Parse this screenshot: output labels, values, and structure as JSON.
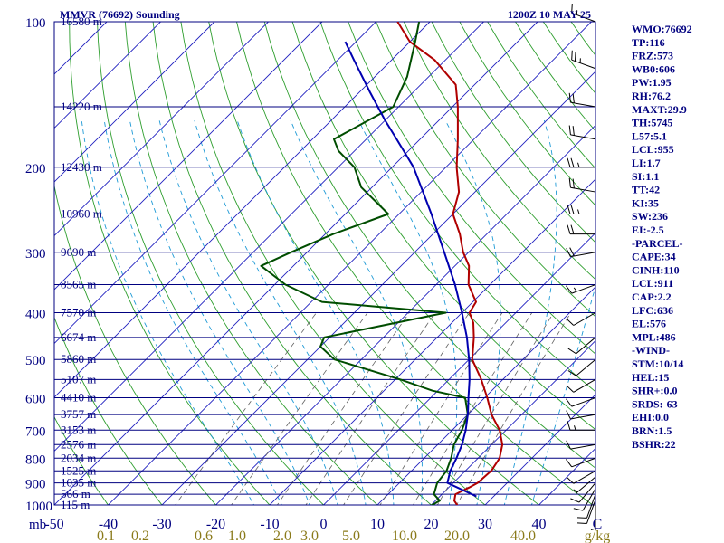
{
  "title_left": "MMVR (76692) Sounding",
  "title_right": "1200Z 10 MAY 25",
  "indices": [
    "WMO:76692",
    "TP:116",
    "FRZ:573",
    "WB0:606",
    "PW:1.95",
    "RH:76.2",
    "MAXT:29.9",
    "TH:5745",
    "L57:5.1",
    "LCL:955",
    "LI:1.7",
    "SI:1.1",
    "TT:42",
    "KI:35",
    "SW:236",
    "EI:-2.5",
    "-PARCEL-",
    "CAPE:34",
    "CINH:110",
    "LCL:911",
    "CAP:2.2",
    "LFC:636",
    "EL:576",
    "MPL:486",
    "-WIND-",
    "STM:10/14",
    "HEL:15",
    "SHR+:0.0",
    "SRDS:-63",
    "EHI:0.0",
    "BRN:1.5",
    "BSHR:22"
  ],
  "chart_data": {
    "type": "line",
    "subtype": "skew-T log-P sounding",
    "y_axis": {
      "label": "mb",
      "scale": "log",
      "ylim": [
        1000,
        100
      ],
      "ticks": [
        100,
        200,
        300,
        400,
        500,
        600,
        700,
        800,
        900,
        1000
      ]
    },
    "x_axis": {
      "unit_label": "C",
      "ticks": [
        -50,
        -40,
        -30,
        -20,
        -10,
        0,
        10,
        20,
        30,
        40
      ]
    },
    "mixing_ratio_axis": {
      "unit_label": "g/kg",
      "ticks": [
        "0.1",
        "0.2",
        "0.6",
        "1.0",
        "2.0",
        "3.0",
        "5.0",
        "10.0",
        "20.0",
        "40.0"
      ]
    },
    "heights": [
      {
        "p": 100,
        "label": "16580 m"
      },
      {
        "p": 150,
        "label": "14220 m"
      },
      {
        "p": 200,
        "label": "12430 m"
      },
      {
        "p": 250,
        "label": "10960 m"
      },
      {
        "p": 300,
        "label": "9690 m"
      },
      {
        "p": 350,
        "label": "8565 m"
      },
      {
        "p": 400,
        "label": "7570 m"
      },
      {
        "p": 450,
        "label": "6674 m"
      },
      {
        "p": 500,
        "label": "5860 m"
      },
      {
        "p": 550,
        "label": "5107 m"
      },
      {
        "p": 600,
        "label": "4410 m"
      },
      {
        "p": 650,
        "label": "3757 m"
      },
      {
        "p": 700,
        "label": "3153 m"
      },
      {
        "p": 750,
        "label": "2576 m"
      },
      {
        "p": 800,
        "label": "2034 m"
      },
      {
        "p": 850,
        "label": "1525 m"
      },
      {
        "p": 900,
        "label": "1035 m"
      },
      {
        "p": 950,
        "label": "566 m"
      },
      {
        "p": 1000,
        "label": "115 m"
      }
    ],
    "series": [
      {
        "key": "temperature",
        "color": "#b00000",
        "points": [
          [
            1006,
            25.2
          ],
          [
            980,
            23.5
          ],
          [
            950,
            22.5
          ],
          [
            920,
            23.8
          ],
          [
            900,
            24.5
          ],
          [
            850,
            24.8
          ],
          [
            800,
            24.0
          ],
          [
            750,
            22.0
          ],
          [
            700,
            18.8
          ],
          [
            650,
            14.4
          ],
          [
            600,
            10.5
          ],
          [
            550,
            6.0
          ],
          [
            500,
            0.6
          ],
          [
            450,
            -3.2
          ],
          [
            420,
            -6.0
          ],
          [
            400,
            -8.6
          ],
          [
            380,
            -9.4
          ],
          [
            350,
            -14.0
          ],
          [
            320,
            -17.4
          ],
          [
            300,
            -21.0
          ],
          [
            275,
            -25.0
          ],
          [
            250,
            -30.0
          ],
          [
            225,
            -33.0
          ],
          [
            200,
            -38.0
          ],
          [
            175,
            -43.0
          ],
          [
            150,
            -49.0
          ],
          [
            135,
            -53.5
          ],
          [
            120,
            -62.0
          ],
          [
            110,
            -70.0
          ],
          [
            100,
            -76.0
          ]
        ]
      },
      {
        "key": "dewpoint",
        "color": "#004d00",
        "points": [
          [
            1006,
            20.0
          ],
          [
            980,
            20.8
          ],
          [
            950,
            18.5
          ],
          [
            900,
            17.0
          ],
          [
            850,
            16.5
          ],
          [
            800,
            15.0
          ],
          [
            750,
            13.0
          ],
          [
            700,
            11.8
          ],
          [
            650,
            10.0
          ],
          [
            600,
            6.4
          ],
          [
            580,
            -1.0
          ],
          [
            550,
            -9.0
          ],
          [
            500,
            -25.0
          ],
          [
            470,
            -30.0
          ],
          [
            450,
            -31.0
          ],
          [
            400,
            -13.0
          ],
          [
            380,
            -38.0
          ],
          [
            350,
            -48.0
          ],
          [
            320,
            -56.0
          ],
          [
            300,
            -53.0
          ],
          [
            275,
            -48.5
          ],
          [
            250,
            -42.0
          ],
          [
            220,
            -52.0
          ],
          [
            200,
            -57.0
          ],
          [
            185,
            -63.0
          ],
          [
            175,
            -66.0
          ],
          [
            150,
            -61.0
          ],
          [
            130,
            -64.0
          ],
          [
            110,
            -69.0
          ],
          [
            100,
            -72.0
          ]
        ]
      },
      {
        "key": "parcel",
        "color": "#0000b0",
        "points": [
          [
            960,
            26.8
          ],
          [
            900,
            18.9
          ],
          [
            850,
            17.2
          ],
          [
            800,
            16.0
          ],
          [
            750,
            14.5
          ],
          [
            700,
            12.5
          ],
          [
            650,
            10.0
          ],
          [
            636,
            9.2
          ],
          [
            600,
            7.0
          ],
          [
            550,
            3.8
          ],
          [
            500,
            0.0
          ],
          [
            450,
            -4.5
          ],
          [
            400,
            -10.0
          ],
          [
            350,
            -16.5
          ],
          [
            300,
            -24.5
          ],
          [
            250,
            -34.0
          ],
          [
            200,
            -46.0
          ],
          [
            176,
            -54.0
          ],
          [
            160,
            -60.0
          ],
          [
            140,
            -68.0
          ],
          [
            120,
            -77.0
          ],
          [
            110,
            -82.0
          ]
        ]
      }
    ],
    "wind_barbs": [
      {
        "p": 1000,
        "dir": 180,
        "kt": 5
      },
      {
        "p": 975,
        "dir": 200,
        "kt": 10
      },
      {
        "p": 950,
        "dir": 200,
        "kt": 10
      },
      {
        "p": 925,
        "dir": 210,
        "kt": 10
      },
      {
        "p": 900,
        "dir": 220,
        "kt": 10
      },
      {
        "p": 875,
        "dir": 230,
        "kt": 5
      },
      {
        "p": 850,
        "dir": 240,
        "kt": 10
      },
      {
        "p": 800,
        "dir": 250,
        "kt": 10
      },
      {
        "p": 750,
        "dir": 260,
        "kt": 10
      },
      {
        "p": 700,
        "dir": 270,
        "kt": 15
      },
      {
        "p": 650,
        "dir": 260,
        "kt": 10
      },
      {
        "p": 600,
        "dir": 250,
        "kt": 10
      },
      {
        "p": 550,
        "dir": 240,
        "kt": 10
      },
      {
        "p": 500,
        "dir": 230,
        "kt": 10
      },
      {
        "p": 450,
        "dir": 230,
        "kt": 10
      },
      {
        "p": 400,
        "dir": 240,
        "kt": 10
      },
      {
        "p": 350,
        "dir": 250,
        "kt": 15
      },
      {
        "p": 300,
        "dir": 260,
        "kt": 20
      },
      {
        "p": 275,
        "dir": 270,
        "kt": 20
      },
      {
        "p": 250,
        "dir": 270,
        "kt": 25
      },
      {
        "p": 225,
        "dir": 280,
        "kt": 20
      },
      {
        "p": 200,
        "dir": 270,
        "kt": 25
      },
      {
        "p": 175,
        "dir": 280,
        "kt": 20
      },
      {
        "p": 150,
        "dir": 280,
        "kt": 20
      },
      {
        "p": 125,
        "dir": 290,
        "kt": 25
      },
      {
        "p": 100,
        "dir": 290,
        "kt": 15
      }
    ],
    "colors": {
      "isobar": "#000080",
      "isotherm": "#1f1fbf",
      "dry_adiabat": "#2e9e2e",
      "moist_adiabat": "#1e9ad6",
      "mixing_ratio": "#606060",
      "label": "#000080",
      "mixing_label": "#8a7a1a"
    }
  }
}
